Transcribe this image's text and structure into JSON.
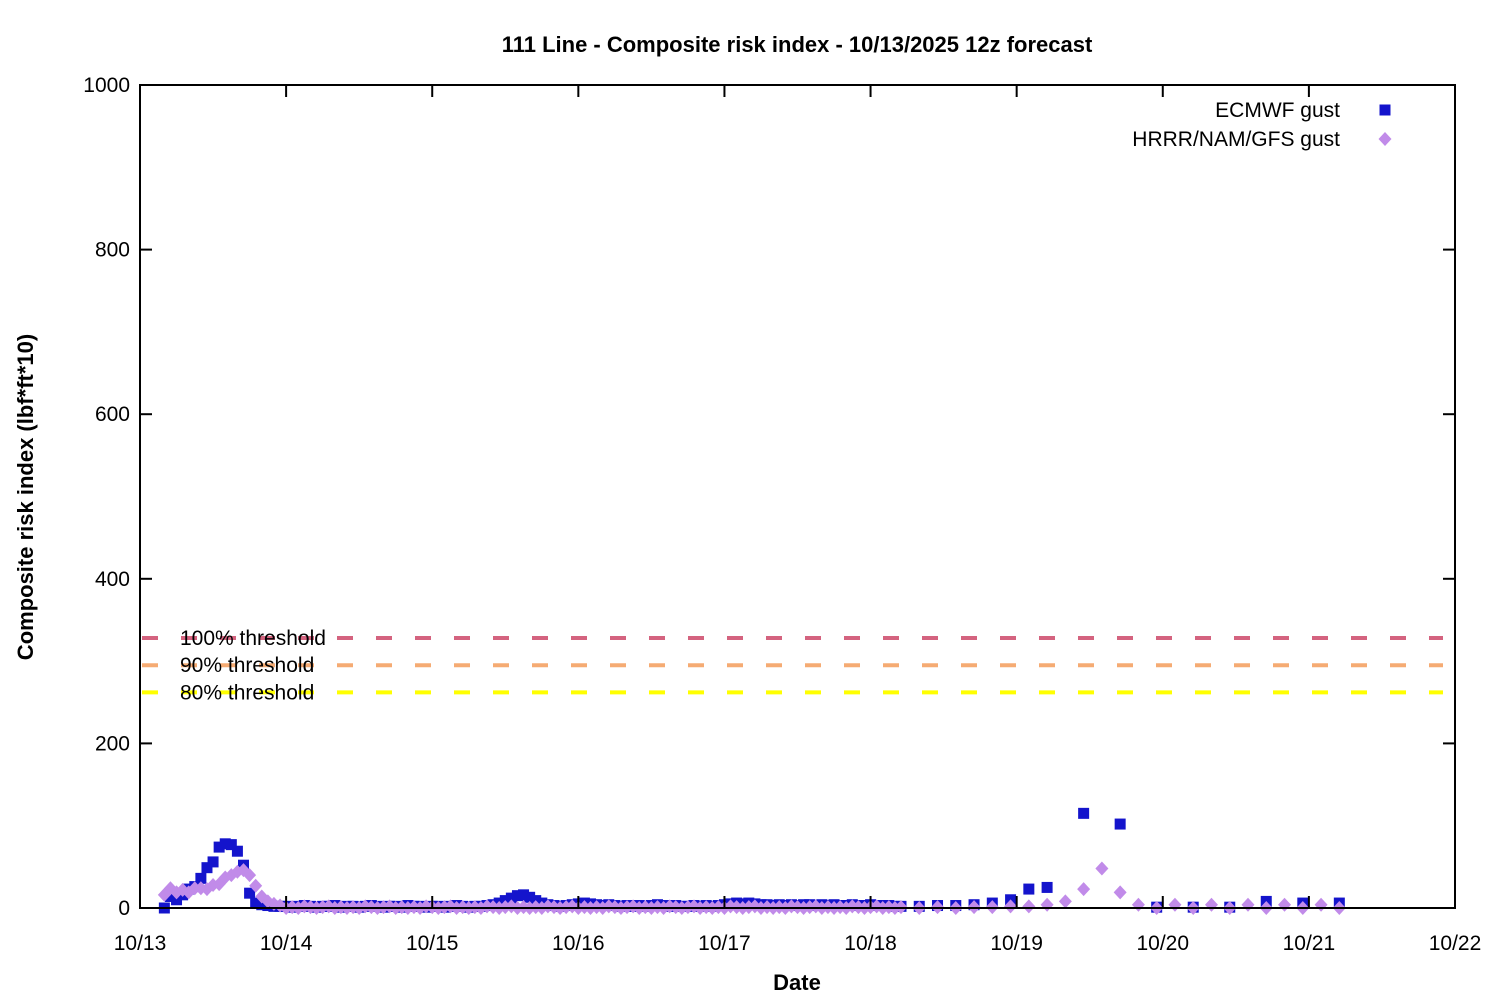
{
  "title": "111 Line - Composite risk index - 10/13/2025 12z forecast",
  "chart_data": {
    "type": "scatter",
    "title": "111 Line - Composite risk index - 10/13/2025 12z forecast",
    "xlabel": "Date",
    "ylabel": "Composite risk index (lbf*ft*10)",
    "xlim": [
      0,
      9
    ],
    "ylim": [
      0,
      1000
    ],
    "grid": false,
    "legend_position": "top-right",
    "x_tick_labels": [
      "10/13",
      "10/14",
      "10/15",
      "10/16",
      "10/17",
      "10/18",
      "10/19",
      "10/20",
      "10/21",
      "10/22"
    ],
    "y_ticks": [
      0,
      200,
      400,
      600,
      800,
      1000
    ],
    "thresholds": [
      {
        "label": "100% threshold",
        "value": 328,
        "color": "#d4637f"
      },
      {
        "label": "90% threshold",
        "value": 295,
        "color": "#f5ab73"
      },
      {
        "label": "80% threshold",
        "value": 262,
        "color": "#ffff00"
      }
    ],
    "series": [
      {
        "name": "ECMWF gust",
        "marker": "square",
        "color": "#1414cc",
        "segments": [
          {
            "start_day": 0.1667,
            "step_days": 0.041667,
            "values": [
              0,
              14,
              10,
              16,
              23,
              26,
              36,
              49,
              56,
              74,
              78,
              77,
              69,
              52,
              18,
              6,
              4,
              3,
              2,
              2
            ]
          },
          {
            "start_day": 1.0,
            "step_days": 0.041667,
            "values": [
              2,
              1,
              2,
              3,
              2,
              1,
              2,
              2,
              3,
              1,
              2,
              2,
              1,
              2,
              3,
              2,
              1,
              2,
              2,
              1,
              3,
              2,
              2,
              1,
              2,
              2,
              1,
              2,
              3,
              2,
              1,
              2,
              2,
              3
            ]
          },
          {
            "start_day": 2.4167,
            "step_days": 0.041667,
            "values": [
              4,
              6,
              9,
              12,
              15,
              16,
              13,
              9,
              6,
              4,
              3
            ]
          },
          {
            "start_day": 2.875,
            "step_days": 0.041667,
            "values": [
              2,
              3,
              4,
              5,
              6,
              5,
              4,
              3,
              4,
              3,
              2,
              3,
              2,
              3,
              2,
              3,
              4,
              3,
              2,
              3,
              2,
              2,
              3,
              2,
              3,
              2,
              3,
              4,
              5,
              6,
              5,
              6,
              5,
              4,
              4,
              3,
              4,
              3,
              4,
              3,
              4,
              4,
              3,
              4,
              3,
              4,
              3,
              3,
              4,
              3,
              3,
              4,
              3,
              3,
              3,
              2
            ]
          },
          {
            "start_day": 5.2083,
            "step_days": 0.125,
            "values": [
              2,
              2,
              3,
              3,
              4,
              6,
              10,
              23,
              25
            ]
          },
          {
            "start_day": 6.4583,
            "step_days": 0.25,
            "values": [
              115,
              102,
              1,
              1,
              1,
              8,
              6,
              6
            ]
          }
        ]
      },
      {
        "name": "HRRR/NAM/GFS gust",
        "marker": "diamond",
        "color": "#c18be9",
        "segments": [
          {
            "start_day": 0.1667,
            "step_days": 0.041667,
            "values": [
              16,
              24,
              19,
              22,
              19,
              24,
              24,
              23,
              28,
              29,
              37,
              40,
              44,
              46,
              40,
              27,
              14,
              8,
              5,
              3
            ]
          },
          {
            "start_day": 1.0,
            "step_days": 0.041667,
            "values": [
              0,
              1,
              0,
              2,
              1,
              0,
              1,
              2,
              0,
              1,
              0,
              1,
              0,
              2,
              1,
              0,
              1,
              2,
              0,
              1,
              0,
              1,
              0,
              2,
              1,
              0,
              1,
              2,
              0,
              1,
              0,
              1,
              0,
              2,
              1,
              0,
              1,
              2,
              0,
              1,
              0,
              1,
              0,
              2,
              1,
              0,
              1,
              2,
              0,
              1,
              0,
              1,
              0,
              2,
              1,
              0,
              1,
              2,
              0,
              1,
              0,
              1,
              0,
              2,
              1,
              0,
              1,
              2,
              0,
              1,
              0,
              1,
              0,
              2,
              1,
              0,
              1,
              2,
              0,
              1,
              0,
              1,
              0,
              2,
              1,
              0,
              1,
              2,
              0,
              1,
              0,
              1,
              0,
              2,
              1,
              0,
              1,
              2,
              0,
              1,
              0
            ]
          },
          {
            "start_day": 5.2083,
            "step_days": 0.125,
            "values": [
              1,
              0,
              1,
              0,
              1,
              1,
              2,
              2,
              4,
              8,
              23,
              48,
              19,
              4,
              0,
              4,
              0,
              4,
              0,
              4,
              0,
              4,
              0,
              4,
              0
            ]
          }
        ]
      }
    ]
  }
}
